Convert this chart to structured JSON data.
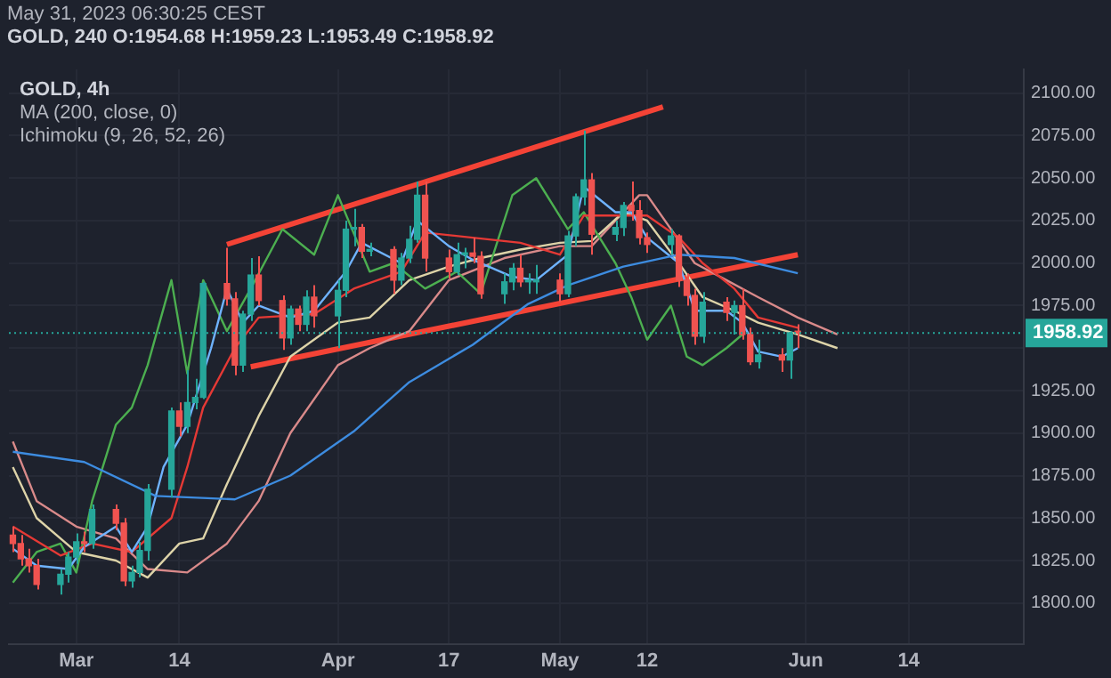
{
  "chart_data": {
    "type": "candlestick",
    "title": "GOLD, 240  O:1954.68 H:1959.23 L:1953.49 C:1958.92",
    "subtitle": "May 31, 2023 06:30:25 CEST",
    "annotations": [
      "GOLD, 4h",
      "MA (200, close, 0)",
      "Ichimoku (9, 26, 52, 26)"
    ],
    "x": [
      "2023-02-21",
      "2023-02-22",
      "2023-02-23",
      "2023-02-24",
      "2023-02-27",
      "2023-02-28",
      "2023-03-01",
      "2023-03-02",
      "2023-03-03",
      "2023-03-06",
      "2023-03-07",
      "2023-03-08",
      "2023-03-09",
      "2023-03-10",
      "2023-03-13",
      "2023-03-14",
      "2023-03-15",
      "2023-03-16",
      "2023-03-17",
      "2023-03-20",
      "2023-03-21",
      "2023-03-22",
      "2023-03-23",
      "2023-03-24",
      "2023-03-27",
      "2023-03-28",
      "2023-03-29",
      "2023-03-30",
      "2023-03-31",
      "2023-04-03",
      "2023-04-04",
      "2023-04-05",
      "2023-04-06",
      "2023-04-07",
      "2023-04-10",
      "2023-04-11",
      "2023-04-12",
      "2023-04-13",
      "2023-04-14",
      "2023-04-17",
      "2023-04-18",
      "2023-04-19",
      "2023-04-20",
      "2023-04-21",
      "2023-04-24",
      "2023-04-25",
      "2023-04-26",
      "2023-04-27",
      "2023-04-28",
      "2023-05-01",
      "2023-05-02",
      "2023-05-03",
      "2023-05-04",
      "2023-05-05",
      "2023-05-08",
      "2023-05-09",
      "2023-05-10",
      "2023-05-11",
      "2023-05-12",
      "2023-05-15",
      "2023-05-16",
      "2023-05-17",
      "2023-05-18",
      "2023-05-19",
      "2023-05-22",
      "2023-05-23",
      "2023-05-24",
      "2023-05-25",
      "2023-05-26",
      "2023-05-29",
      "2023-05-30",
      "2023-05-31"
    ],
    "ohlc": [
      [
        1840,
        1845,
        1830,
        1835
      ],
      [
        1835,
        1840,
        1822,
        1826
      ],
      [
        1826,
        1832,
        1818,
        1822
      ],
      [
        1822,
        1826,
        1808,
        1811
      ],
      [
        1811,
        1820,
        1805,
        1817
      ],
      [
        1817,
        1830,
        1812,
        1827
      ],
      [
        1827,
        1841,
        1823,
        1836
      ],
      [
        1836,
        1842,
        1830,
        1835
      ],
      [
        1835,
        1858,
        1832,
        1855
      ],
      [
        1855,
        1858,
        1843,
        1847
      ],
      [
        1847,
        1850,
        1810,
        1813
      ],
      [
        1813,
        1822,
        1809,
        1818
      ],
      [
        1818,
        1836,
        1815,
        1831
      ],
      [
        1831,
        1870,
        1825,
        1867
      ],
      [
        1867,
        1915,
        1862,
        1913
      ],
      [
        1913,
        1918,
        1898,
        1904
      ],
      [
        1904,
        1937,
        1900,
        1918
      ],
      [
        1918,
        1932,
        1914,
        1921
      ],
      [
        1921,
        1989,
        1920,
        1988
      ],
      [
        1988,
        2009,
        1975,
        1979
      ],
      [
        1979,
        1983,
        1934,
        1940
      ],
      [
        1940,
        1972,
        1936,
        1970
      ],
      [
        1970,
        2003,
        1966,
        1993
      ],
      [
        1993,
        2004,
        1975,
        1978
      ],
      [
        1978,
        1981,
        1949,
        1956
      ],
      [
        1956,
        1975,
        1952,
        1973
      ],
      [
        1973,
        1975,
        1960,
        1964
      ],
      [
        1964,
        1984,
        1960,
        1980
      ],
      [
        1980,
        1987,
        1962,
        1969
      ],
      [
        1969,
        1990,
        1950,
        1984
      ],
      [
        1984,
        2025,
        1980,
        2020
      ],
      [
        2020,
        2032,
        2010,
        2021
      ],
      [
        2021,
        2023,
        2003,
        2007
      ],
      [
        2007,
        2012,
        2004,
        2008
      ],
      [
        2008,
        2010,
        1982,
        1990
      ],
      [
        1990,
        2006,
        1987,
        2003
      ],
      [
        2003,
        2022,
        2000,
        2014
      ],
      [
        2014,
        2048,
        2012,
        2040
      ],
      [
        2040,
        2048,
        1995,
        2003
      ],
      [
        2003,
        2008,
        1991,
        1995
      ],
      [
        1995,
        2012,
        1993,
        2005
      ],
      [
        2005,
        2009,
        1997,
        2006
      ],
      [
        2006,
        2015,
        2000,
        2004
      ],
      [
        2004,
        2007,
        1979,
        1982
      ],
      [
        1982,
        1994,
        1976,
        1989
      ],
      [
        1989,
        2000,
        1984,
        1997
      ],
      [
        1997,
        2005,
        1986,
        1989
      ],
      [
        1989,
        1994,
        1982,
        1989
      ],
      [
        1989,
        1999,
        1982,
        1990
      ],
      [
        1990,
        1994,
        1977,
        1982
      ],
      [
        1982,
        2019,
        1980,
        2016
      ],
      [
        2016,
        2041,
        2010,
        2039
      ],
      [
        2039,
        2078,
        2034,
        2049
      ],
      [
        2049,
        2053,
        2005,
        2017
      ],
      [
        2017,
        2025,
        2013,
        2021
      ],
      [
        2021,
        2036,
        2016,
        2034
      ],
      [
        2034,
        2048,
        2025,
        2031
      ],
      [
        2031,
        2037,
        2011,
        2015
      ],
      [
        2015,
        2018,
        2006,
        2011
      ],
      [
        2011,
        2020,
        2005,
        2016
      ],
      [
        2016,
        2017,
        1986,
        1990
      ],
      [
        1990,
        1994,
        1975,
        1981
      ],
      [
        1981,
        1985,
        1952,
        1957
      ],
      [
        1957,
        1983,
        1953,
        1977
      ],
      [
        1977,
        1980,
        1966,
        1971
      ],
      [
        1971,
        1978,
        1958,
        1975
      ],
      [
        1975,
        1985,
        1955,
        1958
      ],
      [
        1958,
        1962,
        1940,
        1942
      ],
      [
        1942,
        1955,
        1938,
        1946
      ],
      [
        1946,
        1950,
        1936,
        1943
      ],
      [
        1943,
        1960,
        1932,
        1959
      ],
      [
        1959,
        1964,
        1950,
        1958.92
      ]
    ],
    "series": [
      {
        "type": "line",
        "color": "#3d8ce0",
        "x": [
          "2023-02-21",
          "2023-03-02",
          "2023-03-11",
          "2023-03-21",
          "2023-03-28",
          "2023-04-05",
          "2023-04-12",
          "2023-04-20",
          "2023-04-27",
          "2023-05-02",
          "2023-05-09",
          "2023-05-16",
          "2023-05-23",
          "2023-05-31"
        ],
        "values": [
          1889,
          1883,
          1863,
          1861,
          1875,
          1901,
          1930,
          1952,
          1976,
          1987,
          1998,
          2005,
          2003,
          1994
        ]
      },
      {
        "type": "line",
        "color": "#6fb3ff",
        "x": [
          "2023-02-21",
          "2023-02-24",
          "2023-02-28",
          "2023-03-02",
          "2023-03-06",
          "2023-03-08",
          "2023-03-10",
          "2023-03-12",
          "2023-03-15",
          "2023-03-18",
          "2023-03-20",
          "2023-03-22",
          "2023-03-24",
          "2023-03-28",
          "2023-03-31",
          "2023-04-04",
          "2023-04-06",
          "2023-04-11",
          "2023-04-13",
          "2023-04-17",
          "2023-04-20",
          "2023-04-25",
          "2023-04-28",
          "2023-05-02",
          "2023-05-04",
          "2023-05-08",
          "2023-05-10",
          "2023-05-12",
          "2023-05-16",
          "2023-05-18",
          "2023-05-22",
          "2023-05-24",
          "2023-05-26",
          "2023-05-29",
          "2023-05-31"
        ],
        "values": [
          1832,
          1822,
          1820,
          1833,
          1845,
          1830,
          1845,
          1880,
          1905,
          1950,
          1985,
          1965,
          1975,
          1968,
          1972,
          1995,
          2012,
          2000,
          2025,
          2010,
          2002,
          1992,
          1990,
          2005,
          2045,
          2030,
          2030,
          2015,
          2000,
          1972,
          1972,
          1965,
          1948,
          1945,
          1950
        ]
      },
      {
        "type": "line",
        "color": "#e53935",
        "x": [
          "2023-02-21",
          "2023-02-27",
          "2023-03-03",
          "2023-03-08",
          "2023-03-13",
          "2023-03-15",
          "2023-03-17",
          "2023-03-21",
          "2023-03-24",
          "2023-03-31",
          "2023-04-05",
          "2023-04-11",
          "2023-04-14",
          "2023-04-20",
          "2023-04-26",
          "2023-05-01",
          "2023-05-04",
          "2023-05-09",
          "2023-05-12",
          "2023-05-16",
          "2023-05-19",
          "2023-05-23",
          "2023-05-26",
          "2023-05-31"
        ],
        "values": [
          1845,
          1828,
          1835,
          1830,
          1850,
          1880,
          1915,
          1950,
          1968,
          1970,
          1985,
          1995,
          2018,
          2015,
          2012,
          2005,
          2028,
          2028,
          2028,
          2015,
          2000,
          1985,
          1968,
          1962
        ]
      },
      {
        "type": "line",
        "color": "#4caf50",
        "x": [
          "2023-02-21",
          "2023-02-24",
          "2023-02-27",
          "2023-03-01",
          "2023-03-03",
          "2023-03-06",
          "2023-03-08",
          "2023-03-10",
          "2023-03-13",
          "2023-03-15",
          "2023-03-17",
          "2023-03-20",
          "2023-03-23",
          "2023-03-27",
          "2023-03-31",
          "2023-04-03",
          "2023-04-07",
          "2023-04-10",
          "2023-04-14",
          "2023-04-18",
          "2023-04-21",
          "2023-04-25",
          "2023-04-28",
          "2023-05-02",
          "2023-05-04",
          "2023-05-08",
          "2023-05-10",
          "2023-05-12",
          "2023-05-15",
          "2023-05-17",
          "2023-05-19",
          "2023-05-22",
          "2023-05-24"
        ],
        "values": [
          1812,
          1830,
          1835,
          1818,
          1860,
          1905,
          1915,
          1940,
          1990,
          1935,
          1990,
          1960,
          1985,
          2020,
          2005,
          2040,
          1995,
          2000,
          1985,
          1995,
          1982,
          2040,
          2050,
          2020,
          2030,
          2000,
          1980,
          1955,
          1975,
          1945,
          1940,
          1950,
          1958
        ]
      },
      {
        "type": "line",
        "color": "#ddd3a8",
        "x": [
          "2023-02-21",
          "2023-02-24",
          "2023-03-01",
          "2023-03-06",
          "2023-03-10",
          "2023-03-14",
          "2023-03-17",
          "2023-03-20",
          "2023-03-24",
          "2023-03-28",
          "2023-04-03",
          "2023-04-07",
          "2023-04-12",
          "2023-04-17",
          "2023-04-21",
          "2023-04-26",
          "2023-05-01",
          "2023-05-05",
          "2023-05-09",
          "2023-05-12",
          "2023-05-16",
          "2023-05-19",
          "2023-05-23",
          "2023-05-26",
          "2023-05-31",
          "2023-06-05"
        ],
        "values": [
          1880,
          1850,
          1830,
          1825,
          1815,
          1835,
          1838,
          1870,
          1910,
          1945,
          1965,
          1968,
          1990,
          1998,
          2003,
          2008,
          2012,
          2013,
          2030,
          2025,
          2000,
          1980,
          1972,
          1965,
          1958,
          1950
        ]
      },
      {
        "type": "line",
        "color": "#d98a8a",
        "x": [
          "2023-02-21",
          "2023-02-24",
          "2023-03-01",
          "2023-03-06",
          "2023-03-10",
          "2023-03-15",
          "2023-03-20",
          "2023-03-24",
          "2023-03-28",
          "2023-04-03",
          "2023-04-07",
          "2023-04-12",
          "2023-04-17",
          "2023-04-24",
          "2023-05-01",
          "2023-05-05",
          "2023-05-09",
          "2023-05-11",
          "2023-05-12",
          "2023-05-15",
          "2023-05-18",
          "2023-05-22",
          "2023-05-26",
          "2023-05-31",
          "2023-06-05"
        ],
        "values": [
          1895,
          1860,
          1845,
          1838,
          1820,
          1818,
          1835,
          1860,
          1900,
          1940,
          1950,
          1960,
          1990,
          2003,
          2010,
          2010,
          2030,
          2040,
          2040,
          2020,
          2000,
          1990,
          1980,
          1968,
          1958
        ]
      },
      {
        "type": "line",
        "color": "#f44336",
        "x": [
          "2023-03-20",
          "2023-05-14"
        ],
        "values": [
          2011,
          2092
        ]
      },
      {
        "type": "line",
        "color": "#f44336",
        "x": [
          "2023-03-23",
          "2023-05-31"
        ],
        "values": [
          1939,
          2005
        ]
      }
    ],
    "ref_lines": [
      {
        "axis": "y",
        "value": 1958.92,
        "label": "1958.92",
        "color": "#26a69a",
        "line_style": "dotted"
      }
    ],
    "xlim": [
      "2023-02-20T12:00",
      "2023-06-28T12:00"
    ],
    "xticks": [
      {
        "value": "2023-03-01",
        "label": "Mar"
      },
      {
        "value": "2023-03-14",
        "label": "14"
      },
      {
        "value": "2023-04-03",
        "label": "Apr"
      },
      {
        "value": "2023-04-17",
        "label": "17"
      },
      {
        "value": "2023-05-01",
        "label": "May"
      },
      {
        "value": "2023-05-12",
        "label": "12"
      },
      {
        "value": "2023-06-01",
        "label": "Jun"
      },
      {
        "value": "2023-06-14",
        "label": "14"
      }
    ],
    "ylim": [
      1776,
      2114
    ],
    "yticks": [
      {
        "value": 1800,
        "label": "1800.00"
      },
      {
        "value": 1825,
        "label": "1825.00"
      },
      {
        "value": 1850,
        "label": "1850.00"
      },
      {
        "value": 1875,
        "label": "1875.00"
      },
      {
        "value": 1900,
        "label": "1900.00"
      },
      {
        "value": 1925,
        "label": "1925.00"
      },
      {
        "value": 1950,
        "label": null
      },
      {
        "value": 1975,
        "label": "1975.00"
      },
      {
        "value": 2000,
        "label": "2000.00"
      },
      {
        "value": 2025,
        "label": "2025.00"
      },
      {
        "value": 2050,
        "label": "2050.00"
      },
      {
        "value": 2075,
        "label": "2075.00"
      },
      {
        "value": 2100,
        "label": "2100.00"
      }
    ],
    "grid": true,
    "legend": false
  }
}
